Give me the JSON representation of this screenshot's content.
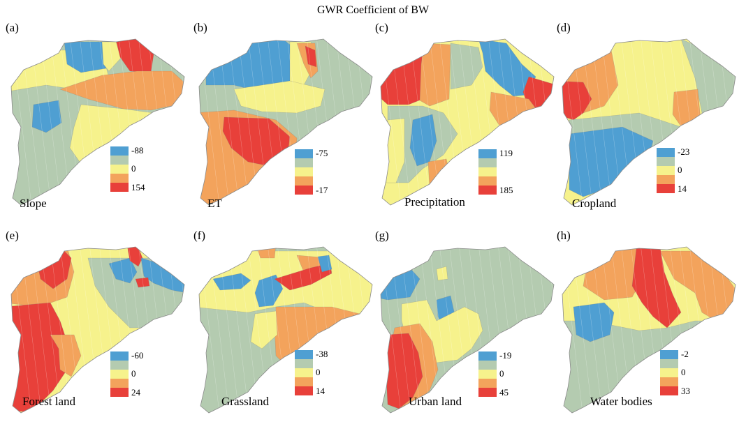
{
  "title": "GWR Coefficient of BW",
  "colors": {
    "blue": "#4f9fd2",
    "green": "#b4cbb0",
    "yellow": "#f6f28c",
    "orange": "#f3a35c",
    "red": "#e8403a",
    "ramp": [
      "#4f9fd2",
      "#b4cbb0",
      "#f6f28c",
      "#f3a35c",
      "#e8403a"
    ]
  },
  "panels": [
    {
      "letter": "(a)",
      "name": "Slope",
      "legend": {
        "top": "-88",
        "mid": "0",
        "bottom": "154"
      }
    },
    {
      "letter": "(b)",
      "name": "ET",
      "legend": {
        "top": "-75",
        "mid": "",
        "bottom": "-17"
      }
    },
    {
      "letter": "(c)",
      "name": "Precipitation",
      "legend": {
        "top": "119",
        "mid": "",
        "bottom": "185"
      }
    },
    {
      "letter": "(d)",
      "name": "Cropland",
      "legend": {
        "top": "-23",
        "mid": "0",
        "bottom": "14"
      }
    },
    {
      "letter": "(e)",
      "name": "Forest land",
      "legend": {
        "top": "-60",
        "mid": "0",
        "bottom": "24"
      }
    },
    {
      "letter": "(f)",
      "name": "Grassland",
      "legend": {
        "top": "-38",
        "mid": "0",
        "bottom": "14"
      }
    },
    {
      "letter": "(g)",
      "name": "Urban land",
      "legend": {
        "top": "-19",
        "mid": "0",
        "bottom": "45"
      }
    },
    {
      "letter": "(h)",
      "name": "Water bodies",
      "legend": {
        "top": "-2",
        "mid": "0",
        "bottom": "33"
      }
    }
  ]
}
